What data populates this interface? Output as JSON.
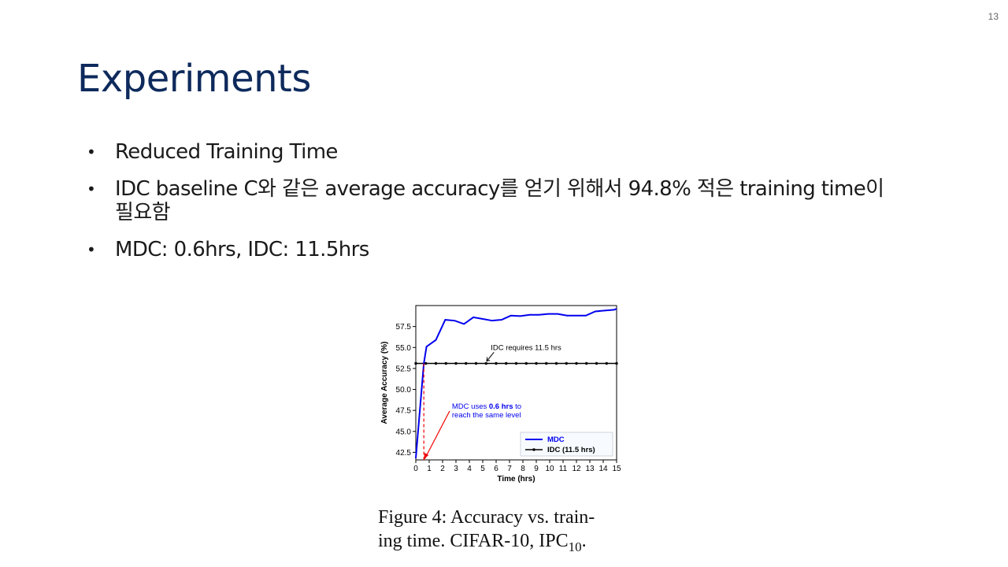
{
  "page_number": "13",
  "title": "Experiments",
  "bullets": [
    "Reduced Training Time",
    "IDC baseline C와 같은 average accuracy를 얻기 위해서 94.8% 적은 training time이 필요함",
    "MDC: 0.6hrs,  IDC: 11.5hrs"
  ],
  "caption": {
    "line1": "Figure 4:  Accuracy vs.  train-",
    "line2_prefix": "ing time. CIFAR-10, IPC",
    "line2_sub": "10",
    "line2_suffix": "."
  },
  "colors": {
    "title": "#0e2a5c",
    "mdc": "#0000ee",
    "idc": "#000000",
    "arrow": "#ee0000"
  },
  "chart_data": {
    "type": "line",
    "xlabel": "Time (hrs)",
    "ylabel": "Average Accuracy (%)",
    "xlim": [
      0,
      15
    ],
    "ylim": [
      41.6,
      60
    ],
    "xticks": [
      "0",
      "1",
      "2",
      "3",
      "4",
      "5",
      "6",
      "7",
      "8",
      "9",
      "10",
      "11",
      "12",
      "13",
      "14",
      "15"
    ],
    "yticks": [
      "42.5",
      "45.0",
      "47.5",
      "50.0",
      "52.5",
      "55.0",
      "57.5"
    ],
    "series": [
      {
        "name": "MDC",
        "x": [
          0,
          0.6,
          0.8,
          1.5,
          2.2,
          2.9,
          3.6,
          4.3,
          5,
          5.7,
          6.4,
          7.1,
          7.8,
          8.5,
          9.2,
          9.9,
          10.6,
          11.3,
          12,
          12.7,
          13.4,
          14.1,
          14.8,
          15
        ],
        "y": [
          41.8,
          53.1,
          55.1,
          55.9,
          58.3,
          58.2,
          57.8,
          58.6,
          58.4,
          58.2,
          58.3,
          58.8,
          58.75,
          58.9,
          58.9,
          59.0,
          59.0,
          58.8,
          58.8,
          58.8,
          59.3,
          59.4,
          59.5,
          59.6
        ]
      },
      {
        "name": "IDC (11.5 hrs)",
        "x": [
          0,
          0.75,
          1.5,
          2.25,
          3,
          3.75,
          4.5,
          5.25,
          6,
          6.75,
          7.5,
          8.25,
          9,
          9.75,
          10.5,
          11.25,
          12,
          12.75,
          13.5,
          14.25,
          15
        ],
        "y": [
          53.1,
          53.1,
          53.1,
          53.1,
          53.1,
          53.1,
          53.1,
          53.1,
          53.1,
          53.1,
          53.1,
          53.1,
          53.1,
          53.1,
          53.1,
          53.1,
          53.1,
          53.1,
          53.1,
          53.1,
          53.1
        ]
      }
    ],
    "legend": {
      "placement": "bottom-right",
      "entries": [
        "MDC",
        "IDC (11.5 hrs)"
      ]
    },
    "annotations": {
      "idc": {
        "text": "IDC requires 11.5 hrs",
        "point": [
          5.3,
          53.1
        ],
        "text_at": [
          5.6,
          55.0
        ]
      },
      "mdc": {
        "line1": "MDC uses ",
        "bold": "0.6 hrs",
        "line1_end": " to",
        "line2": "reach the same level",
        "point": [
          0.6,
          41.6
        ],
        "text_at": [
          2.7,
          47.7
        ]
      }
    },
    "mdc_dashed_x": 0.6
  }
}
